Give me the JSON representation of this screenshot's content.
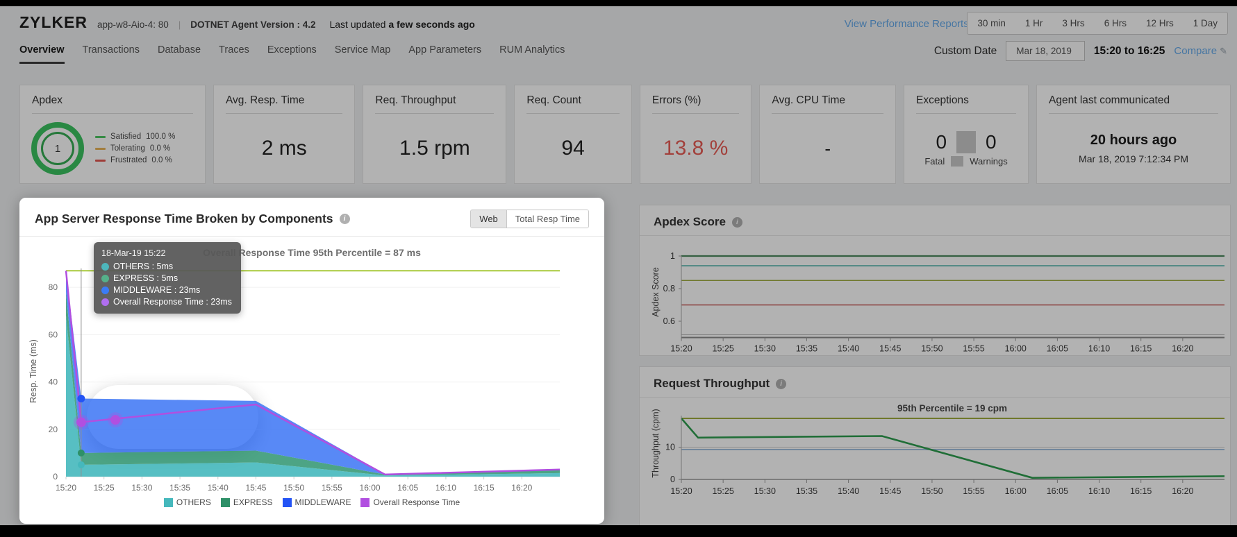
{
  "header": {
    "app_name": "ZYLKER",
    "host": "app-w8-Aio-4: 80",
    "agent_version": "DOTNET Agent Version : 4.2",
    "last_updated_prefix": "Last updated",
    "last_updated_value": "a few seconds ago",
    "performance_link": "View Performance Reports",
    "time_ranges": [
      "30 min",
      "1 Hr",
      "3 Hrs",
      "6 Hrs",
      "12 Hrs",
      "1 Day"
    ]
  },
  "nav": {
    "tabs": [
      "Overview",
      "Transactions",
      "Database",
      "Traces",
      "Exceptions",
      "Service Map",
      "App Parameters",
      "RUM Analytics"
    ],
    "active_tab": "Overview",
    "custom_date_label": "Custom Date",
    "date_value": "Mar 18, 2019",
    "time_range_value": "15:20 to 16:25",
    "compare_label": "Compare"
  },
  "cards": [
    {
      "title": "Apdex",
      "value": "1",
      "legend": [
        {
          "label": "Satisfied",
          "value": "100.0 %",
          "color": "#4fc763"
        },
        {
          "label": "Tolerating",
          "value": "0.0 %",
          "color": "#e8b45a"
        },
        {
          "label": "Frustrated",
          "value": "0.0 %",
          "color": "#e2564f"
        }
      ]
    },
    {
      "title": "Avg. Resp. Time",
      "value": "2 ms"
    },
    {
      "title": "Req. Throughput",
      "value": "1.5 rpm"
    },
    {
      "title": "Req. Count",
      "value": "94"
    },
    {
      "title": "Errors (%)",
      "value": "13.8 %",
      "value_color": "#e85c55"
    },
    {
      "title": "Avg. CPU Time",
      "value": "-"
    },
    {
      "title": "Exceptions",
      "values": [
        "0",
        "0"
      ],
      "labels": [
        "Fatal",
        "Warnings"
      ]
    },
    {
      "title": "Agent last communicated",
      "value": "20 hours ago",
      "sub_value": "Mar 18, 2019 7:12:34 PM"
    }
  ],
  "chart_data": [
    {
      "id": "components",
      "type": "area",
      "title": "App Server Response Time Broken by Components",
      "toggle_options": [
        "Web",
        "Total Resp Time"
      ],
      "toggle_selected": "Web",
      "annotation": "Overall Response Time 95th Percentile = 87 ms",
      "percentile_ms": 87,
      "percentile_color": "#a8c93c",
      "ylabel": "Resp. Time (ms)",
      "ylim": [
        0,
        95
      ],
      "yticks": [
        0,
        20,
        40,
        60,
        80
      ],
      "xtick_minutes": [
        0,
        5,
        10,
        15,
        20,
        25,
        30,
        35,
        40,
        45,
        50,
        55,
        60
      ],
      "xtick_labels": [
        "15:20",
        "15:25",
        "15:30",
        "15:35",
        "15:40",
        "15:45",
        "15:50",
        "15:55",
        "16:00",
        "16:05",
        "16:10",
        "16:15",
        "16:20"
      ],
      "x_minutes": [
        0,
        2,
        25,
        42,
        65
      ],
      "series": [
        {
          "name": "OTHERS",
          "color": "#45b8bc",
          "fill": "rgba(69,184,188,0.9)",
          "values": [
            68,
            5,
            6,
            0.5,
            1.5
          ]
        },
        {
          "name": "EXPRESS",
          "color": "#2e9068",
          "fill": "rgba(58,154,120,0.9)",
          "values": [
            10,
            5,
            5,
            0.4,
            1.5
          ]
        },
        {
          "name": "MIDDLEWARE",
          "color": "#2353f5",
          "fill": "rgba(59,116,245,0.85)",
          "values": [
            9,
            23,
            21,
            0.2,
            0.1
          ]
        }
      ],
      "overall": {
        "name": "Overall Response Time",
        "color": "#b14fe0",
        "values": [
          87,
          23,
          30.5,
          0.9,
          3
        ]
      },
      "marker_minute": 2,
      "tooltip": {
        "header": "18-Mar-19 15:22",
        "rows": [
          {
            "label": "OTHERS",
            "value": "5ms",
            "color": "#4db6bc"
          },
          {
            "label": "EXPRESS",
            "value": "5ms",
            "color": "#55b08a"
          },
          {
            "label": "MIDDLEWARE",
            "value": "23ms",
            "color": "#3b7cf6"
          },
          {
            "label": "Overall Response Time",
            "value": "23ms",
            "color": "#b06ef0"
          }
        ]
      }
    },
    {
      "id": "apdex_score",
      "type": "line",
      "title": "Apdex Score",
      "ylabel": "Apdex Score",
      "ylim": [
        0.5,
        1
      ],
      "yticks": [
        1,
        0.8,
        0.6
      ],
      "score": {
        "value": 1,
        "color": "#4c8a5f"
      },
      "thresholds": [
        {
          "value": 0.94,
          "color": "#54b8ae"
        },
        {
          "value": 0.85,
          "color": "#a0ad3e"
        },
        {
          "value": 0.7,
          "color": "#c45a55"
        }
      ],
      "xtick_minutes": [
        0,
        5,
        10,
        15,
        20,
        25,
        30,
        35,
        40,
        45,
        50,
        55,
        60
      ],
      "xtick_labels": [
        "15:20",
        "15:25",
        "15:30",
        "15:35",
        "15:40",
        "15:45",
        "15:50",
        "15:55",
        "16:00",
        "16:05",
        "16:10",
        "16:15",
        "16:20"
      ]
    },
    {
      "id": "request_throughput",
      "type": "line",
      "title": "Request Throughput",
      "annotation": "95th Percentile = 19 cpm",
      "ylabel": "Throughput (cpm)",
      "ylim": [
        0,
        22
      ],
      "yticks": [
        0,
        10
      ],
      "percentile": {
        "value": 19,
        "color": "#a0ad3e"
      },
      "reference": {
        "value": 9.3,
        "color": "#8fb3d9"
      },
      "series": {
        "name": "Request Throughput",
        "color": "#2e9e4f",
        "x_minutes": [
          0,
          2,
          24,
          42,
          65
        ],
        "values": [
          19,
          13,
          13.5,
          0.5,
          1
        ]
      },
      "xtick_minutes": [
        0,
        5,
        10,
        15,
        20,
        25,
        30,
        35,
        40,
        45,
        50,
        55,
        60
      ],
      "xtick_labels": [
        "15:20",
        "15:25",
        "15:30",
        "15:35",
        "15:40",
        "15:45",
        "15:50",
        "15:55",
        "16:00",
        "16:05",
        "16:10",
        "16:15",
        "16:20"
      ]
    }
  ]
}
